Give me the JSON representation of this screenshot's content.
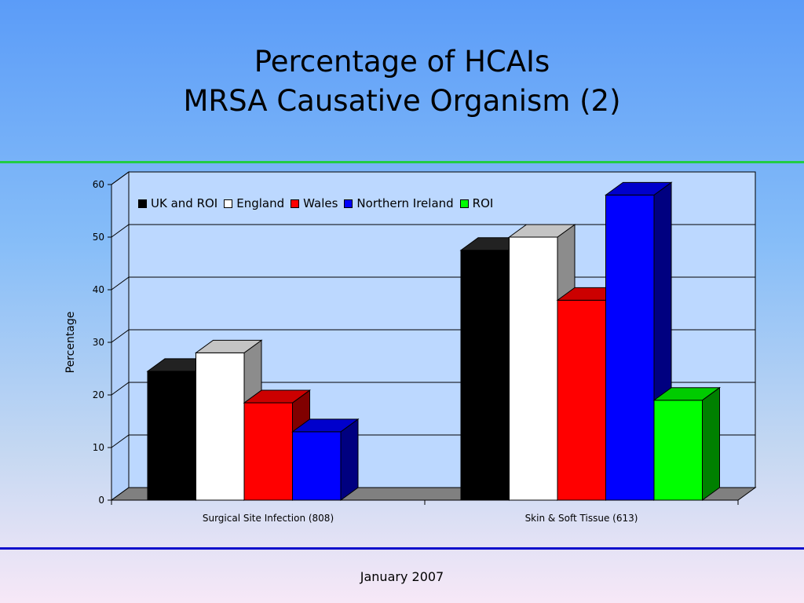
{
  "slide": {
    "title_line1": "Percentage of HCAIs",
    "title_line2": "MRSA Causative Organism (2)",
    "footer": "January 2007",
    "rule_top_color": "#22cc44",
    "rule_bottom_color": "#1111cc"
  },
  "chart_data": {
    "type": "bar",
    "style": "3d-clustered",
    "title": "",
    "xlabel": "",
    "ylabel": "Percentage",
    "ylim": [
      0,
      60
    ],
    "yticks": [
      "0",
      "10",
      "20",
      "30",
      "40",
      "50",
      "60"
    ],
    "grid": true,
    "legend_position": "top-left",
    "categories": [
      "Surgical Site Infection (808)",
      "Skin & Soft Tissue (613)"
    ],
    "series": [
      {
        "name": "UK and ROI",
        "color": "#000000",
        "values": [
          24.5,
          47.5
        ]
      },
      {
        "name": "England",
        "color": "#ffffff",
        "values": [
          28,
          50
        ]
      },
      {
        "name": "Wales",
        "color": "#ff0000",
        "values": [
          18.5,
          38
        ]
      },
      {
        "name": "Northern Ireland",
        "color": "#0000ff",
        "values": [
          13,
          58
        ]
      },
      {
        "name": "ROI",
        "color": "#00ff00",
        "values": [
          null,
          19
        ]
      }
    ]
  }
}
